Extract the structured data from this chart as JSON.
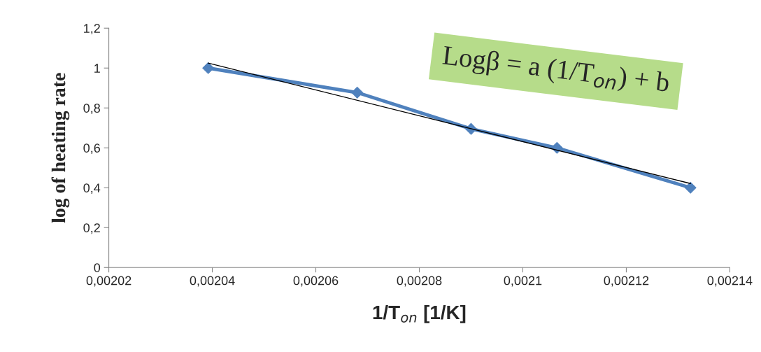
{
  "chart_data": {
    "type": "line",
    "xlabel": "1/T$_{on}$ [1/K]",
    "ylabel": "log of heating rate",
    "annotations": [
      "Logβ = a (1/T$_{on}$) + b"
    ],
    "series": [
      {
        "color": "#4f81bd",
        "marker": "diamond",
        "x": [
          0.0020392,
          0.002068,
          0.00209,
          0.0021066,
          0.0021324
        ],
        "values": [
          1.0,
          0.877,
          0.695,
          0.6,
          0.4
        ]
      },
      {
        "color": "#000000",
        "marker": "none",
        "x": [
          0.0020392,
          0.0021324
        ],
        "values": [
          1.025,
          0.421
        ]
      }
    ],
    "xlim": [
      0.00202,
      0.00214
    ],
    "xticks": [
      {
        "value": 0.00202,
        "label": "0,00202"
      },
      {
        "value": 0.00204,
        "label": "0,00204"
      },
      {
        "value": 0.00206,
        "label": "0,00206"
      },
      {
        "value": 0.00208,
        "label": "0,00208"
      },
      {
        "value": 0.0021,
        "label": "0,0021"
      },
      {
        "value": 0.00212,
        "label": "0,00212"
      },
      {
        "value": 0.00214,
        "label": "0,00214"
      }
    ],
    "ylim": [
      0,
      1.2
    ],
    "yticks": [
      0,
      {
        "value": 0.2,
        "label": "0,2"
      },
      {
        "value": 0.4,
        "label": "0,4"
      },
      {
        "value": 0.6,
        "label": "0,6"
      },
      {
        "value": 0.8,
        "label": "0,8"
      },
      1,
      {
        "value": 1.2,
        "label": "1,2"
      }
    ],
    "grid": false,
    "legend": false
  }
}
